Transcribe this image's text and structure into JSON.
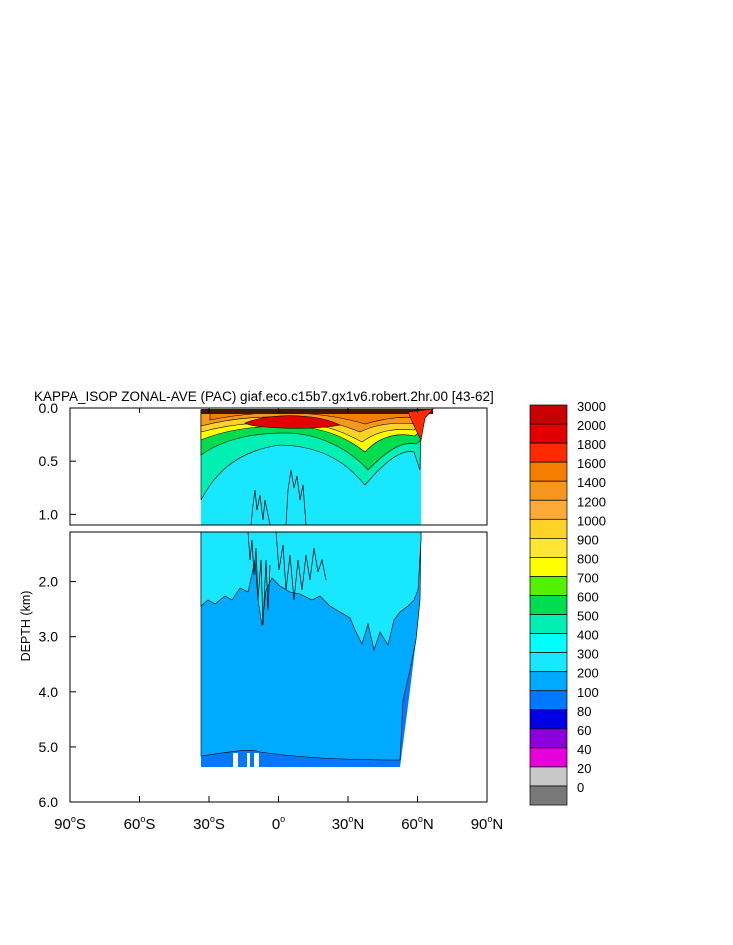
{
  "chart_data": {
    "type": "heatmap",
    "title": "KAPPA_ISOP ZONAL-AVE (PAC) giaf.eco.c15b7.gx1v6.robert.2hr.00 [43-62]",
    "ylabel": "DEPTH (km)",
    "xlabel": "",
    "x_ticks": [
      {
        "value": -90,
        "label": "90",
        "hemi": "S"
      },
      {
        "value": -60,
        "label": "60",
        "hemi": "S"
      },
      {
        "value": -30,
        "label": "30",
        "hemi": "S"
      },
      {
        "value": 0,
        "label": "0",
        "hemi": ""
      },
      {
        "value": 30,
        "label": "30",
        "hemi": "N"
      },
      {
        "value": 60,
        "label": "60",
        "hemi": "N"
      },
      {
        "value": 90,
        "label": "90",
        "hemi": "N"
      }
    ],
    "upper_panel": {
      "ylim": [
        0.0,
        1.1
      ],
      "y_ticks": [
        "0.0",
        "0.5",
        "1.0"
      ],
      "y_tick_values": [
        0.0,
        0.5,
        1.0
      ]
    },
    "lower_panel": {
      "ylim": [
        1.1,
        6.0
      ],
      "y_ticks": [
        "2.0",
        "3.0",
        "4.0",
        "5.0",
        "6.0"
      ],
      "y_tick_values": [
        2.0,
        3.0,
        4.0,
        5.0,
        6.0
      ]
    },
    "xlim": [
      -90,
      90
    ],
    "data_extent": {
      "lat": [
        -33,
        62
      ],
      "bottom_depth_km": 5.4
    },
    "colorbar": {
      "levels": [
        "3000",
        "2000",
        "1800",
        "1600",
        "1400",
        "1200",
        "1000",
        "900",
        "800",
        "700",
        "600",
        "500",
        "400",
        "300",
        "200",
        "100",
        "80",
        "60",
        "40",
        "20",
        "0"
      ],
      "colors": [
        "#c80000",
        "#e10000",
        "#ff2a00",
        "#f57d00",
        "#f5961e",
        "#ffaa37",
        "#ffd228",
        "#ffe632",
        "#ffff00",
        "#55f000",
        "#00dc50",
        "#00f0b4",
        "#00ffff",
        "#19e6ff",
        "#00aaff",
        "#0078ff",
        "#0000e6",
        "#8c00dc",
        "#e600dc",
        "#c8c8c8",
        "#787878"
      ]
    }
  }
}
